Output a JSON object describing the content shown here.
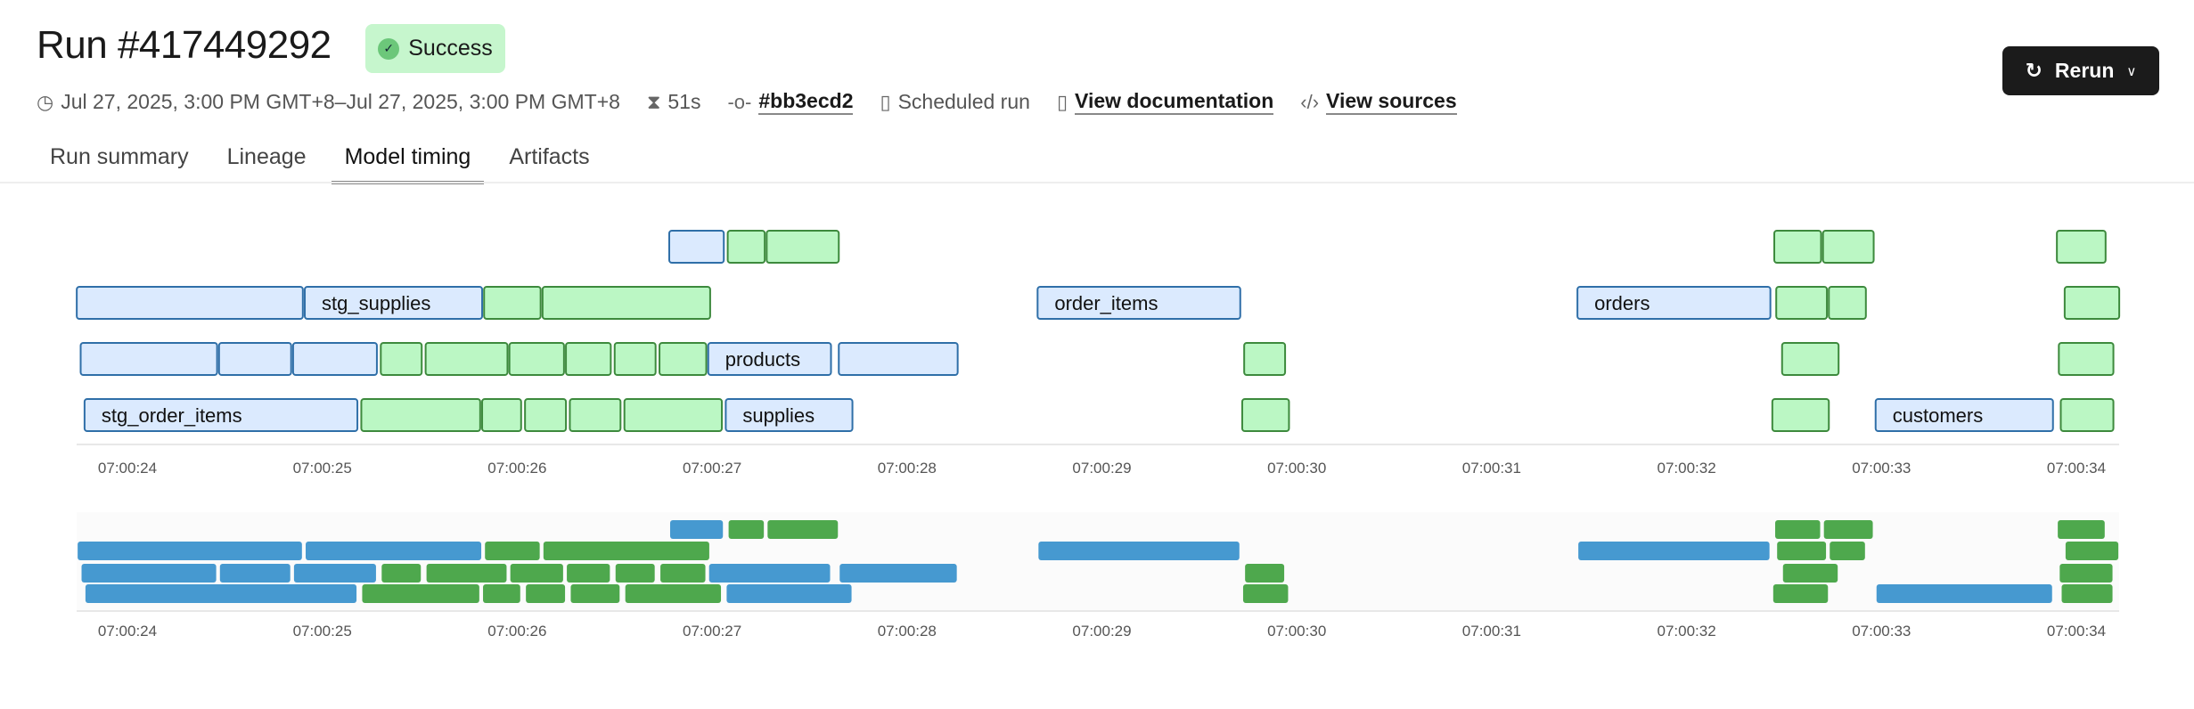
{
  "header": {
    "title": "Run #417449292",
    "status": "Success",
    "time_range": "Jul 27, 2025, 3:00 PM GMT+8–Jul 27, 2025, 3:00 PM GMT+8",
    "duration": "51s",
    "commit": "#bb3ecd2",
    "trigger": "Scheduled run",
    "docs_link": "View documentation",
    "sources_link": "View sources",
    "rerun_label": "Rerun"
  },
  "tabs": [
    {
      "label": "Run summary",
      "active": false
    },
    {
      "label": "Lineage",
      "active": false
    },
    {
      "label": "Model timing",
      "active": true
    },
    {
      "label": "Artifacts",
      "active": false
    }
  ],
  "colors": {
    "model_fill": "#dbeafe",
    "model_stroke": "#2f6fa8",
    "test_fill": "#bbf7c4",
    "test_stroke": "#3d8a3d",
    "mini_model": "#4699d0",
    "mini_test": "#4ea84d"
  },
  "chart_data": {
    "type": "gantt",
    "x_ticks": [
      "07:00:24",
      "07:00:25",
      "07:00:26",
      "07:00:27",
      "07:00:28",
      "07:00:29",
      "07:00:30",
      "07:00:31",
      "07:00:32",
      "07:00:33",
      "07:00:34"
    ],
    "xlim": [
      "07:00:23.7",
      "07:00:34.3"
    ],
    "rows": [
      [
        {
          "kind": "model",
          "start": "07:00:26.78",
          "end": "07:00:27.06"
        },
        {
          "kind": "test",
          "start": "07:00:27.08",
          "end": "07:00:27.27"
        },
        {
          "kind": "test",
          "start": "07:00:27.28",
          "end": "07:00:27.65"
        },
        {
          "kind": "test",
          "start": "07:00:32.45",
          "end": "07:00:32.69"
        },
        {
          "kind": "test",
          "start": "07:00:32.70",
          "end": "07:00:32.96"
        },
        {
          "kind": "test",
          "start": "07:00:33.90",
          "end": "07:00:34.15"
        }
      ],
      [
        {
          "kind": "model",
          "start": "07:00:23.74",
          "end": "07:00:24.90"
        },
        {
          "kind": "model",
          "start": "07:00:24.91",
          "end": "07:00:25.82",
          "label": "stg_supplies"
        },
        {
          "kind": "test",
          "start": "07:00:25.83",
          "end": "07:00:26.12"
        },
        {
          "kind": "test",
          "start": "07:00:26.13",
          "end": "07:00:26.99"
        },
        {
          "kind": "model",
          "start": "07:00:28.67",
          "end": "07:00:29.71",
          "label": "order_items"
        },
        {
          "kind": "model",
          "start": "07:00:31.44",
          "end": "07:00:32.43",
          "label": "orders"
        },
        {
          "kind": "test",
          "start": "07:00:32.46",
          "end": "07:00:32.72"
        },
        {
          "kind": "test",
          "start": "07:00:32.73",
          "end": "07:00:32.92"
        },
        {
          "kind": "test",
          "start": "07:00:33.94",
          "end": "07:00:34.22"
        }
      ],
      [
        {
          "kind": "model",
          "start": "07:00:23.76",
          "end": "07:00:24.46"
        },
        {
          "kind": "model",
          "start": "07:00:24.47",
          "end": "07:00:24.84"
        },
        {
          "kind": "model",
          "start": "07:00:24.85",
          "end": "07:00:25.28"
        },
        {
          "kind": "test",
          "start": "07:00:25.30",
          "end": "07:00:25.51"
        },
        {
          "kind": "test",
          "start": "07:00:25.53",
          "end": "07:00:25.95"
        },
        {
          "kind": "test",
          "start": "07:00:25.96",
          "end": "07:00:26.24"
        },
        {
          "kind": "test",
          "start": "07:00:26.25",
          "end": "07:00:26.48"
        },
        {
          "kind": "test",
          "start": "07:00:26.50",
          "end": "07:00:26.71"
        },
        {
          "kind": "test",
          "start": "07:00:26.73",
          "end": "07:00:26.97"
        },
        {
          "kind": "model",
          "start": "07:00:26.98",
          "end": "07:00:27.61",
          "label": "products"
        },
        {
          "kind": "model",
          "start": "07:00:27.65",
          "end": "07:00:28.26"
        },
        {
          "kind": "test",
          "start": "07:00:29.73",
          "end": "07:00:29.94"
        },
        {
          "kind": "test",
          "start": "07:00:32.49",
          "end": "07:00:32.78"
        },
        {
          "kind": "test",
          "start": "07:00:33.91",
          "end": "07:00:34.19"
        }
      ],
      [
        {
          "kind": "model",
          "start": "07:00:23.78",
          "end": "07:00:25.18",
          "label": "stg_order_items"
        },
        {
          "kind": "test",
          "start": "07:00:25.20",
          "end": "07:00:25.81"
        },
        {
          "kind": "test",
          "start": "07:00:25.82",
          "end": "07:00:26.02"
        },
        {
          "kind": "test",
          "start": "07:00:26.04",
          "end": "07:00:26.25"
        },
        {
          "kind": "test",
          "start": "07:00:26.27",
          "end": "07:00:26.53"
        },
        {
          "kind": "test",
          "start": "07:00:26.55",
          "end": "07:00:27.05"
        },
        {
          "kind": "model",
          "start": "07:00:27.07",
          "end": "07:00:27.72",
          "label": "supplies"
        },
        {
          "kind": "test",
          "start": "07:00:29.72",
          "end": "07:00:29.96"
        },
        {
          "kind": "test",
          "start": "07:00:32.44",
          "end": "07:00:32.73"
        },
        {
          "kind": "model",
          "start": "07:00:32.97",
          "end": "07:00:33.88",
          "label": "customers"
        },
        {
          "kind": "test",
          "start": "07:00:33.92",
          "end": "07:00:34.19"
        }
      ]
    ]
  }
}
